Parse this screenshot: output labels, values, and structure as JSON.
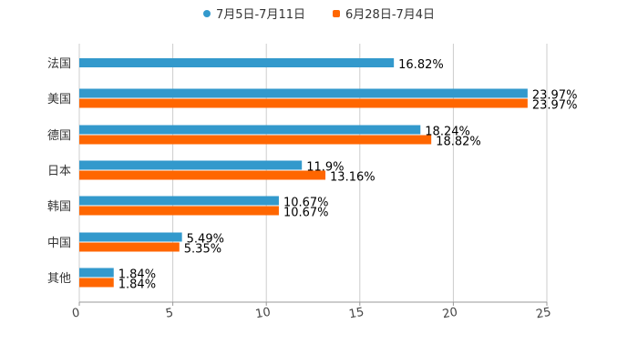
{
  "chart_data": {
    "type": "bar",
    "orientation": "horizontal",
    "title": "",
    "xlabel": "",
    "ylabel": "",
    "xlim": [
      0,
      25
    ],
    "xticks": [
      0,
      5,
      10,
      15,
      20,
      25
    ],
    "grid": true,
    "legend_position": "top",
    "categories": [
      "法国",
      "美国",
      "德国",
      "日本",
      "韩国",
      "中国",
      "其他"
    ],
    "series": [
      {
        "name": "7月5日-7月11日",
        "color": "#3399cc",
        "values": [
          16.82,
          23.97,
          18.24,
          11.9,
          10.67,
          5.49,
          1.84
        ],
        "labels": [
          "16.82%",
          "23.97%",
          "18.24%",
          "11.9%",
          "10.67%",
          "5.49%",
          "1.84%"
        ]
      },
      {
        "name": "6月28日-7月4日",
        "color": "#ff6600",
        "values": [
          null,
          23.97,
          18.82,
          13.16,
          10.67,
          5.35,
          1.84
        ],
        "labels": [
          "",
          "23.97%",
          "18.82%",
          "13.16%",
          "10.67%",
          "5.35%",
          "1.84%"
        ]
      }
    ]
  },
  "legend": {
    "series1": "7月5日-7月11日",
    "series2": "6月28日-7月4日"
  }
}
